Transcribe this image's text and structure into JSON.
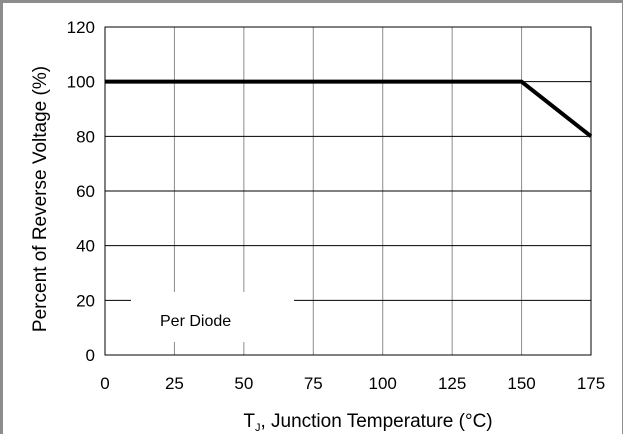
{
  "chart_data": {
    "type": "line",
    "title": "",
    "xlabel": "T",
    "xlabel_sub": "J",
    "xlabel_rest": ", Junction Temperature (°C)",
    "ylabel": "Percent of Reverse Voltage (%)",
    "xlim": [
      0,
      175
    ],
    "ylim": [
      0,
      120
    ],
    "x_ticks": [
      0,
      25,
      50,
      75,
      100,
      125,
      150,
      175
    ],
    "y_ticks": [
      0,
      20,
      40,
      60,
      80,
      100,
      120
    ],
    "grid": true,
    "annotation": "Per  Diode",
    "series": [
      {
        "x": [
          0,
          150,
          175
        ],
        "values": [
          100,
          100,
          80
        ],
        "color": "#000000"
      }
    ]
  }
}
